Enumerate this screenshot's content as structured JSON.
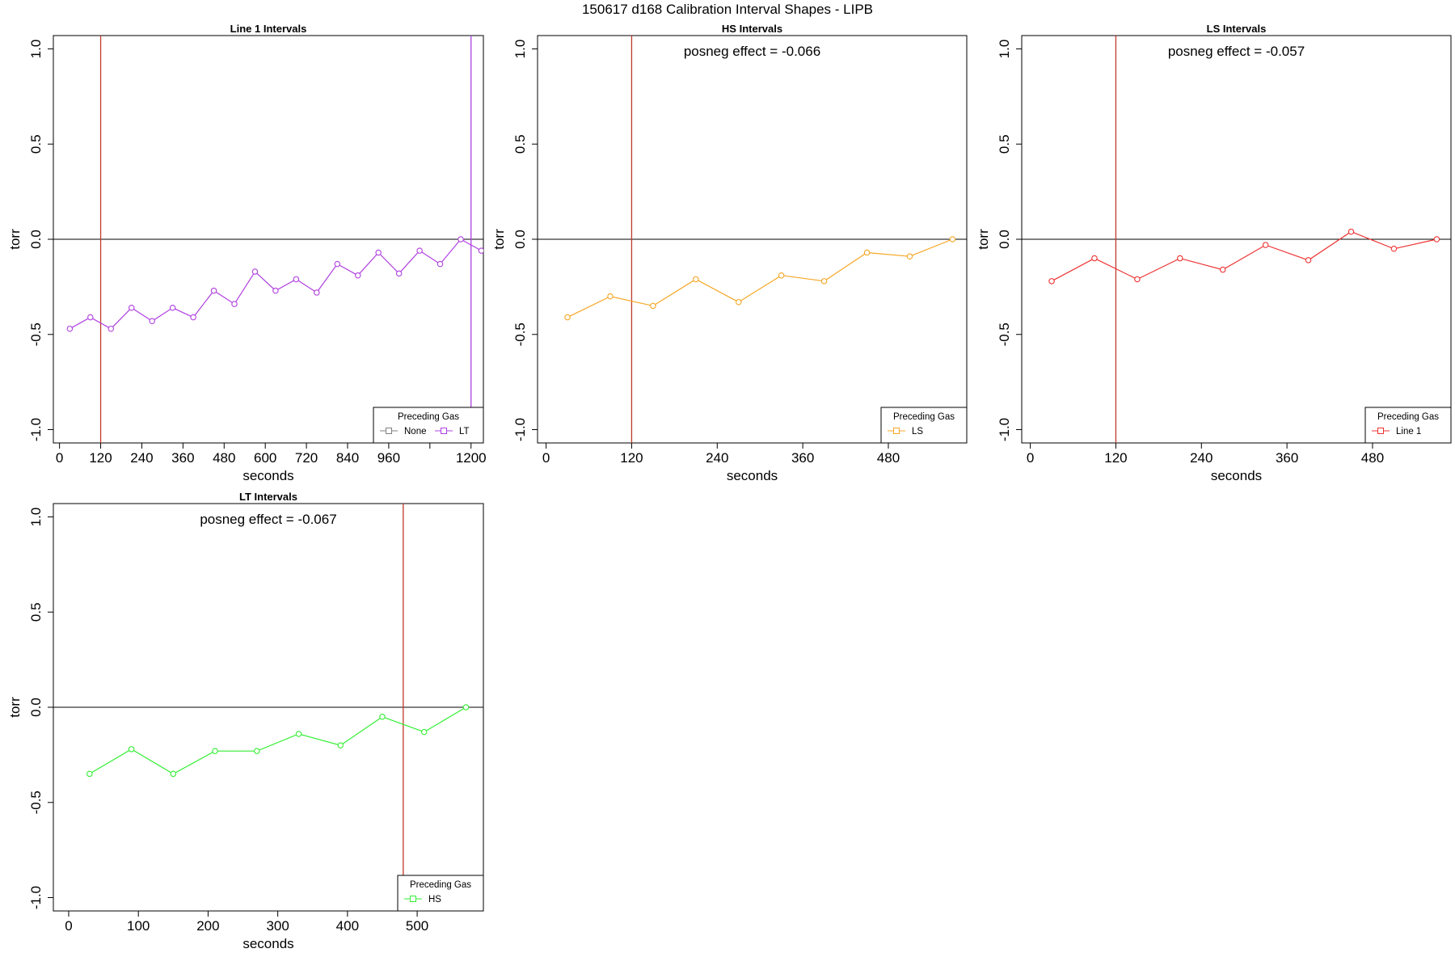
{
  "figure": {
    "suptitle": "150617   d168   Calibration Interval Shapes - LIPB"
  },
  "chart_data": [
    {
      "type": "line",
      "title": "Line 1 Intervals",
      "xlabel": "seconds",
      "ylabel": "torr",
      "xlim": [
        -18,
        1236
      ],
      "ylim": [
        -1.07,
        1.07
      ],
      "xticks": [
        0,
        120,
        240,
        360,
        480,
        600,
        720,
        840,
        960,
        1080,
        1200
      ],
      "xtick_labels": [
        "0",
        "120",
        "240",
        "360",
        "480",
        "600",
        "720",
        "840",
        "960",
        "",
        "1200"
      ],
      "yticks": [
        -1.0,
        -0.5,
        0.0,
        0.5,
        1.0
      ],
      "ytick_labels": [
        "-1.0",
        "-0.5",
        "0.0",
        "0.5",
        "1.0"
      ],
      "hlines": [
        {
          "y": 0,
          "color": "#000000"
        }
      ],
      "vlines": [
        {
          "x": 120,
          "color": "#c0392b"
        },
        {
          "x": 1200,
          "color": "#b040e0"
        }
      ],
      "annotation": "",
      "series": [
        {
          "name": "LT",
          "color": "#b040e0",
          "x": [
            30,
            90,
            150,
            210,
            270,
            330,
            390,
            450,
            510,
            570,
            630,
            690,
            750,
            810,
            870,
            930,
            990,
            1050,
            1110,
            1170,
            1230
          ],
          "values": [
            -0.47,
            -0.41,
            -0.47,
            -0.36,
            -0.43,
            -0.36,
            -0.41,
            -0.27,
            -0.34,
            -0.17,
            -0.27,
            -0.21,
            -0.28,
            -0.13,
            -0.19,
            -0.07,
            -0.18,
            -0.06,
            -0.13,
            0.0,
            -0.06
          ]
        }
      ],
      "legend": {
        "title": "Preceding Gas",
        "position": "bottom-right",
        "entries": [
          {
            "label": "None",
            "color": "#808080"
          },
          {
            "label": "LT",
            "color": "#b040e0"
          }
        ]
      }
    },
    {
      "type": "line",
      "title": "HS Intervals",
      "xlabel": "seconds",
      "ylabel": "torr",
      "xlim": [
        -12,
        590
      ],
      "ylim": [
        -1.07,
        1.07
      ],
      "xticks": [
        0,
        120,
        240,
        360,
        480
      ],
      "xtick_labels": [
        "0",
        "120",
        "240",
        "360",
        "480"
      ],
      "yticks": [
        -1.0,
        -0.5,
        0.0,
        0.5,
        1.0
      ],
      "ytick_labels": [
        "-1.0",
        "-0.5",
        "0.0",
        "0.5",
        "1.0"
      ],
      "hlines": [
        {
          "y": 0,
          "color": "#000000"
        }
      ],
      "vlines": [
        {
          "x": 120,
          "color": "#c0392b"
        }
      ],
      "annotation": "posneg effect = -0.066",
      "series": [
        {
          "name": "LS",
          "color": "#f5a623",
          "x": [
            30,
            90,
            150,
            210,
            270,
            330,
            390,
            450,
            510,
            570
          ],
          "values": [
            -0.41,
            -0.3,
            -0.35,
            -0.21,
            -0.33,
            -0.19,
            -0.22,
            -0.07,
            -0.09,
            0.0
          ]
        }
      ],
      "legend": {
        "title": "Preceding Gas",
        "position": "bottom-right",
        "entries": [
          {
            "label": "LS",
            "color": "#f5a623"
          }
        ]
      }
    },
    {
      "type": "line",
      "title": "LS Intervals",
      "xlabel": "seconds",
      "ylabel": "torr",
      "xlim": [
        -12,
        590
      ],
      "ylim": [
        -1.07,
        1.07
      ],
      "xticks": [
        0,
        120,
        240,
        360,
        480
      ],
      "xtick_labels": [
        "0",
        "120",
        "240",
        "360",
        "480"
      ],
      "yticks": [
        -1.0,
        -0.5,
        0.0,
        0.5,
        1.0
      ],
      "ytick_labels": [
        "-1.0",
        "-0.5",
        "0.0",
        "0.5",
        "1.0"
      ],
      "hlines": [
        {
          "y": 0,
          "color": "#000000"
        }
      ],
      "vlines": [
        {
          "x": 120,
          "color": "#c0392b"
        }
      ],
      "annotation": "posneg effect = -0.057",
      "series": [
        {
          "name": "Line 1",
          "color": "#ee3333",
          "x": [
            30,
            90,
            150,
            210,
            270,
            330,
            390,
            450,
            510,
            570
          ],
          "values": [
            -0.22,
            -0.1,
            -0.21,
            -0.1,
            -0.16,
            -0.03,
            -0.11,
            0.04,
            -0.05,
            0.0
          ]
        }
      ],
      "legend": {
        "title": "Preceding Gas",
        "position": "bottom-right",
        "entries": [
          {
            "label": "Line 1",
            "color": "#ee3333"
          }
        ]
      }
    },
    {
      "type": "line",
      "title": "LT Intervals",
      "xlabel": "seconds",
      "ylabel": "torr",
      "xlim": [
        -22,
        595
      ],
      "ylim": [
        -1.07,
        1.07
      ],
      "xticks": [
        0,
        100,
        200,
        300,
        400,
        500
      ],
      "xtick_labels": [
        "0",
        "100",
        "200",
        "300",
        "400",
        "500"
      ],
      "yticks": [
        -1.0,
        -0.5,
        0.0,
        0.5,
        1.0
      ],
      "ytick_labels": [
        "-1.0",
        "-0.5",
        "0.0",
        "0.5",
        "1.0"
      ],
      "hlines": [
        {
          "y": 0,
          "color": "#000000"
        }
      ],
      "vlines": [
        {
          "x": 480,
          "color": "#c0392b"
        }
      ],
      "annotation": "posneg effect = -0.067",
      "series": [
        {
          "name": "HS",
          "color": "#33ee33",
          "x": [
            30,
            90,
            150,
            210,
            270,
            330,
            390,
            450,
            510,
            570
          ],
          "values": [
            -0.35,
            -0.22,
            -0.35,
            -0.23,
            -0.23,
            -0.14,
            -0.2,
            -0.05,
            -0.13,
            0.0
          ]
        }
      ],
      "legend": {
        "title": "Preceding Gas",
        "position": "bottom-right",
        "entries": [
          {
            "label": "HS",
            "color": "#33ee33"
          }
        ]
      }
    }
  ]
}
